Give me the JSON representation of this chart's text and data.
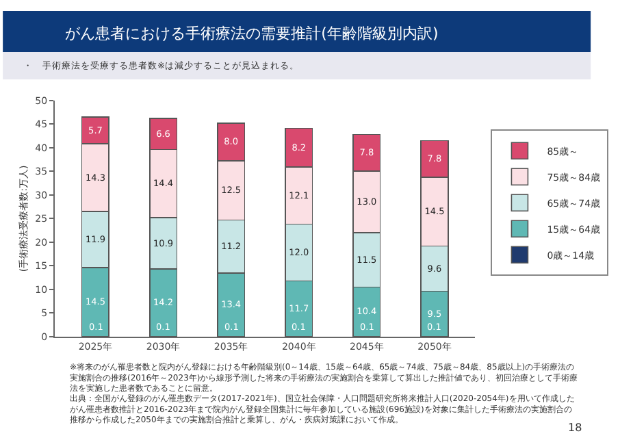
{
  "chart_data": {
    "type": "bar",
    "stacked": true,
    "title": "がん患者における手術療法の需要推計(年齢階級別内訳)",
    "subtitle": "・　手術療法を受療する患者数※は減少することが見込まれる。",
    "ylabel": "(手術療法受療者数:万人)",
    "categories": [
      "2025年",
      "2030年",
      "2035年",
      "2040年",
      "2045年",
      "2050年"
    ],
    "series": [
      {
        "name": "0歳～14歳",
        "color": "#1f3a6e",
        "values": [
          0.1,
          0.1,
          0.1,
          0.1,
          0.1,
          0.1
        ],
        "value_labels": [
          "0.1",
          "0.1",
          "0.1",
          "0.1",
          "0.1",
          "0.1"
        ]
      },
      {
        "name": "15歳～64歳",
        "color": "#5fb8b4",
        "values": [
          14.5,
          14.2,
          13.4,
          11.7,
          10.4,
          9.5
        ],
        "value_labels": [
          "14.5",
          "14.2",
          "13.4",
          "11.7",
          "10.4",
          "9.5"
        ]
      },
      {
        "name": "65歳～74歳",
        "color": "#c8e6e6",
        "values": [
          11.9,
          10.9,
          11.2,
          12.0,
          11.5,
          9.6
        ],
        "value_labels": [
          "11.9",
          "10.9",
          "11.2",
          "12.0",
          "11.5",
          "9.6"
        ]
      },
      {
        "name": "75歳～84歳",
        "color": "#fbe0e4",
        "values": [
          14.3,
          14.4,
          12.5,
          12.1,
          13.0,
          14.5
        ],
        "value_labels": [
          "14.3",
          "14.4",
          "12.5",
          "12.1",
          "13.0",
          "14.5"
        ]
      },
      {
        "name": "85歳～",
        "color": "#d9496e",
        "values": [
          5.7,
          6.6,
          8.0,
          8.2,
          7.8,
          7.8
        ],
        "value_labels": [
          "5.7",
          "6.6",
          "8.0",
          "8.2",
          "7.8",
          "7.8"
        ]
      }
    ],
    "ylim": [
      0,
      50
    ],
    "yticks": [
      0,
      5,
      10,
      15,
      20,
      25,
      30,
      35,
      40,
      45,
      50
    ],
    "legend": "right",
    "annotations": [
      "※将来のがん罹患者数と院内がん登録における年齢階級別(0～14歳、15歳～64歳、65歳～74歳、75歳～84歳、85歳以上)の手術療法の実施割合の推移(2016年～2023年)から線形予測した将来の手術療法の実施割合を乗算して算出した推計値であり、初回治療として手術療法を実施した患者数であることに留意。",
      "出典：全国がん登録のがん罹患数データ(2017-2021年)、国立社会保障・人口問題研究所将来推計人口(2020-2054年)を用いて作成したがん罹患者数推計と2016-2023年まで院内がん登録全国集計に毎年参加している施設(696施設)を対象に集計した手術療法の実施割合の推移から作成した2050年までの実施割合推計と乗算し、がん・疾病対策課において作成。",
      "18"
    ]
  }
}
